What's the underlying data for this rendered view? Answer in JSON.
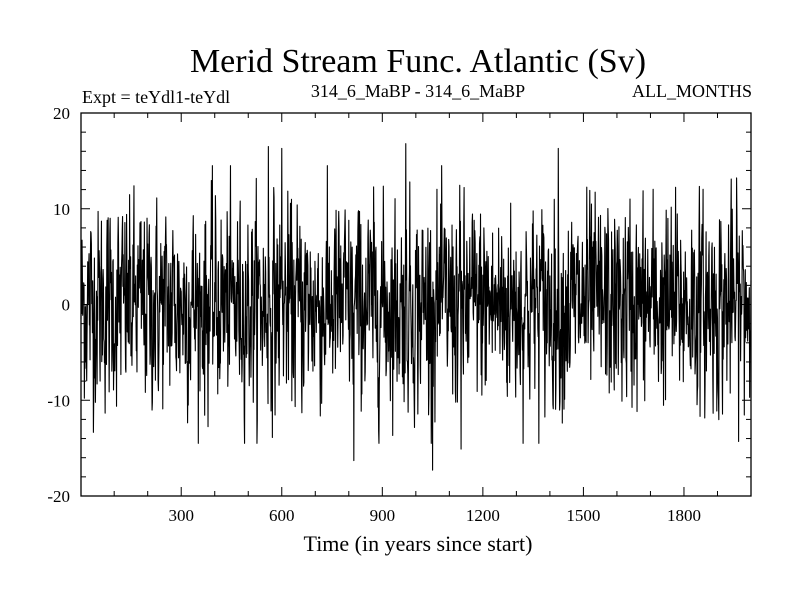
{
  "chart_data": {
    "type": "line",
    "title": "Merid Stream Func. Atlantic (Sv)",
    "subtitle_left": "Expt = teYdl1-teYdl",
    "subtitle_center": "314_6_MaBP - 314_6_MaBP",
    "subtitle_right": "ALL_MONTHS",
    "xlabel": "Time (in years since start)",
    "ylabel": "",
    "xlim": [
      1,
      2000
    ],
    "ylim": [
      -20,
      20
    ],
    "xticks": [
      300,
      600,
      900,
      1200,
      1500,
      1800
    ],
    "yticks": [
      -20,
      -10,
      0,
      10,
      20
    ],
    "grid": false,
    "series": [
      {
        "name": "",
        "color": "#000000",
        "sampling": "annual, 2000 years",
        "mean": 0,
        "std": 5,
        "notable_points": [
          {
            "x": 560,
            "y": 16.5
          },
          {
            "x": 600,
            "y": 16.3
          },
          {
            "x": 970,
            "y": 16.8
          },
          {
            "x": 1425,
            "y": 16.3
          },
          {
            "x": 815,
            "y": -16.3
          },
          {
            "x": 1050,
            "y": -17.3
          },
          {
            "x": 1135,
            "y": -15.1
          }
        ]
      }
    ]
  }
}
